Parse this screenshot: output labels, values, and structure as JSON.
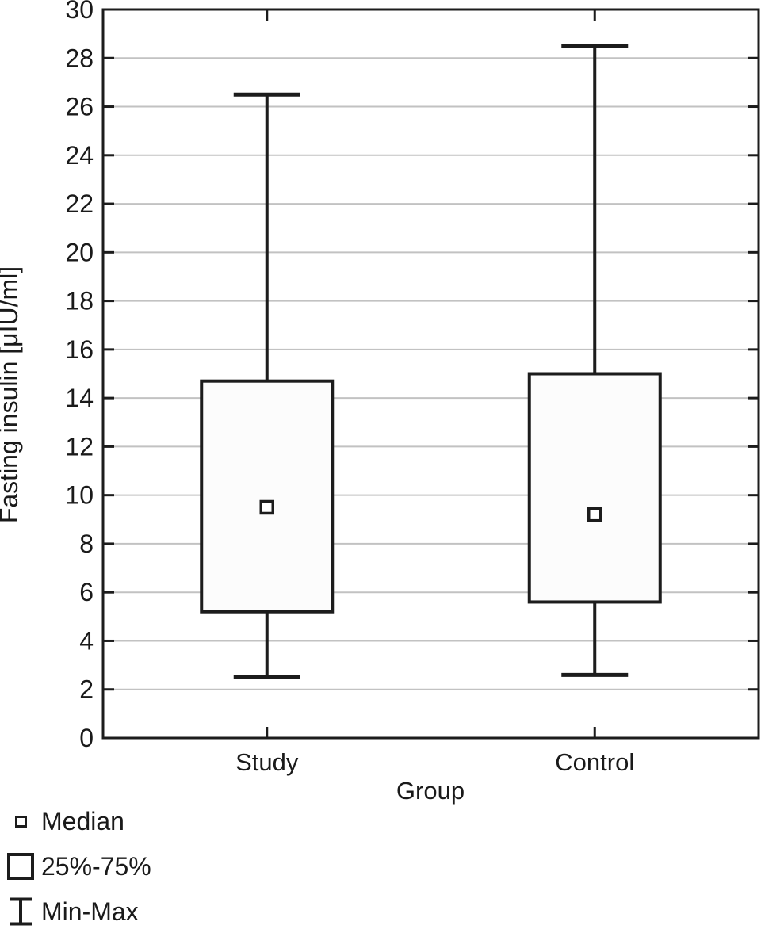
{
  "chart_data": {
    "type": "box",
    "title": "",
    "xlabel": "Group",
    "ylabel": "Fasting insulin [μIU/ml]",
    "categories": [
      "Study",
      "Control"
    ],
    "series": [
      {
        "name": "Study",
        "min": 2.5,
        "q1": 5.2,
        "median": 9.5,
        "q3": 14.7,
        "max": 26.5
      },
      {
        "name": "Control",
        "min": 2.6,
        "q1": 5.6,
        "median": 9.2,
        "q3": 15.0,
        "max": 28.5
      }
    ],
    "ylim": [
      0,
      30
    ],
    "ytick_step": 2,
    "grid": true,
    "legend_position": "bottom-left",
    "legend": [
      {
        "label": "Median",
        "marker": "small-square"
      },
      {
        "label": "25%-75%",
        "marker": "box"
      },
      {
        "label": "Min-Max",
        "marker": "whisker"
      }
    ],
    "colors": {
      "line": "#1c1c1c",
      "text": "#1a1a1a",
      "grid": "#c2c2c2",
      "box_fill": "#fcfcfc",
      "background": "#ffffff"
    }
  }
}
